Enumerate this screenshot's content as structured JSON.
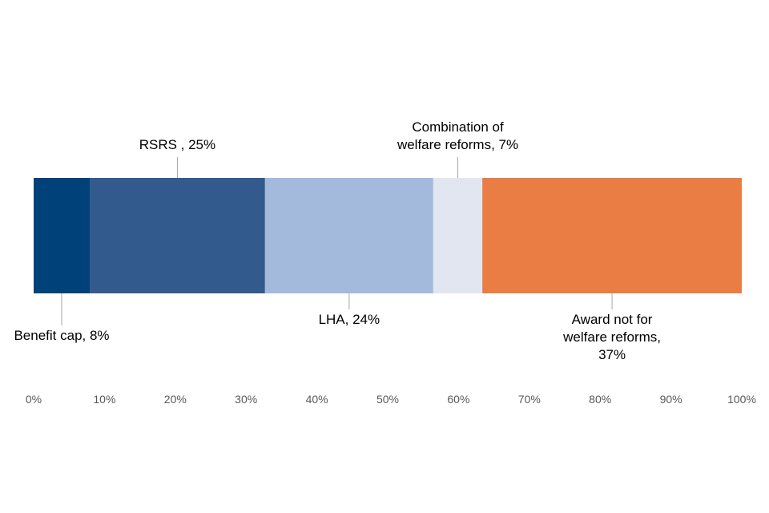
{
  "chart_data": {
    "type": "bar",
    "orientation": "horizontal",
    "stacked": true,
    "title": "",
    "xlabel": "",
    "ylabel": "",
    "xlim": [
      0,
      100
    ],
    "x_tick_labels": [
      "0%",
      "10%",
      "20%",
      "30%",
      "40%",
      "50%",
      "60%",
      "70%",
      "80%",
      "90%",
      "100%"
    ],
    "grid": false,
    "legend": "none",
    "series": [
      {
        "name": "Benefit cap",
        "value": 8,
        "color": "#00417A",
        "label_lines": [
          "Benefit cap, 8%"
        ],
        "label_position": "below"
      },
      {
        "name": "RSRS",
        "value": 25,
        "color": "#325A8C",
        "label_lines": [
          "RSRS , 25%"
        ],
        "label_position": "above"
      },
      {
        "name": "LHA",
        "value": 24,
        "color": "#A4BADC",
        "label_lines": [
          "LHA, 24%"
        ],
        "label_position": "below"
      },
      {
        "name": "Combination of welfare reforms",
        "value": 7,
        "color": "#E1E6F0",
        "label_lines": [
          "Combination of",
          "welfare reforms, 7%"
        ],
        "label_position": "above"
      },
      {
        "name": "Award not for welfare reforms",
        "value": 37,
        "color": "#E97D43",
        "label_lines": [
          "Award not for",
          "welfare reforms,",
          "37%"
        ],
        "label_position": "below"
      }
    ]
  }
}
